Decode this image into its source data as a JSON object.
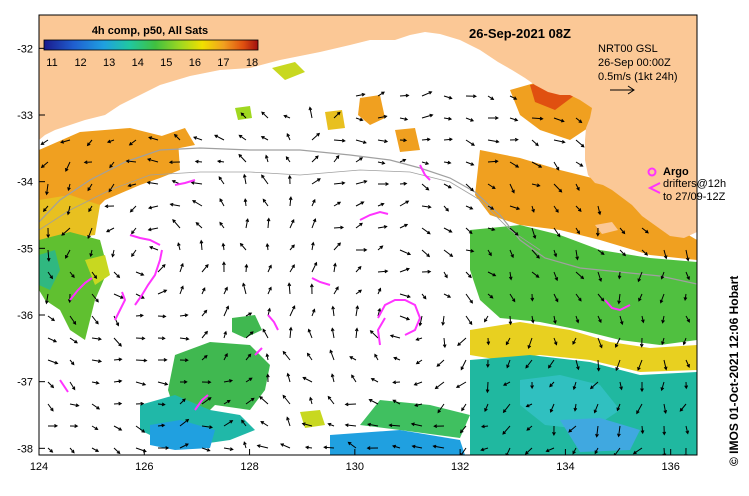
{
  "title": "26-Sep-2021 08Z",
  "colorbar": {
    "title": "4h comp, p50, All Sats",
    "ticks": [
      "11",
      "12",
      "13",
      "14",
      "15",
      "16",
      "17",
      "18"
    ],
    "colors": [
      "#1a1a8c",
      "#1f5fd0",
      "#1fa0e0",
      "#20c8a0",
      "#40c040",
      "#a0d820",
      "#f0e000",
      "#f0a020",
      "#e05010",
      "#a01010"
    ]
  },
  "product_info": {
    "line1": "NRT00 GSL",
    "line2": "26-Sep 00:00Z",
    "line3": "0.5m/s (1kt 24h)"
  },
  "legend": {
    "argo_label": "Argo",
    "drifters_line1": "drifters@12h",
    "drifters_line2": "to 27/09-12Z",
    "argo_color": "#ff33ff"
  },
  "axes": {
    "x_ticks": [
      "124",
      "126",
      "128",
      "130",
      "132",
      "134",
      "136"
    ],
    "y_ticks": [
      "-32",
      "-33",
      "-34",
      "-35",
      "-36",
      "-37",
      "-38"
    ]
  },
  "credit": "© IMOS 01-Oct-2021 12:06 Hobart",
  "colors": {
    "land": "#fbc896",
    "ocean": "#ffffff",
    "arrow": "#000000",
    "bathymetry": "#a0a0a0"
  }
}
